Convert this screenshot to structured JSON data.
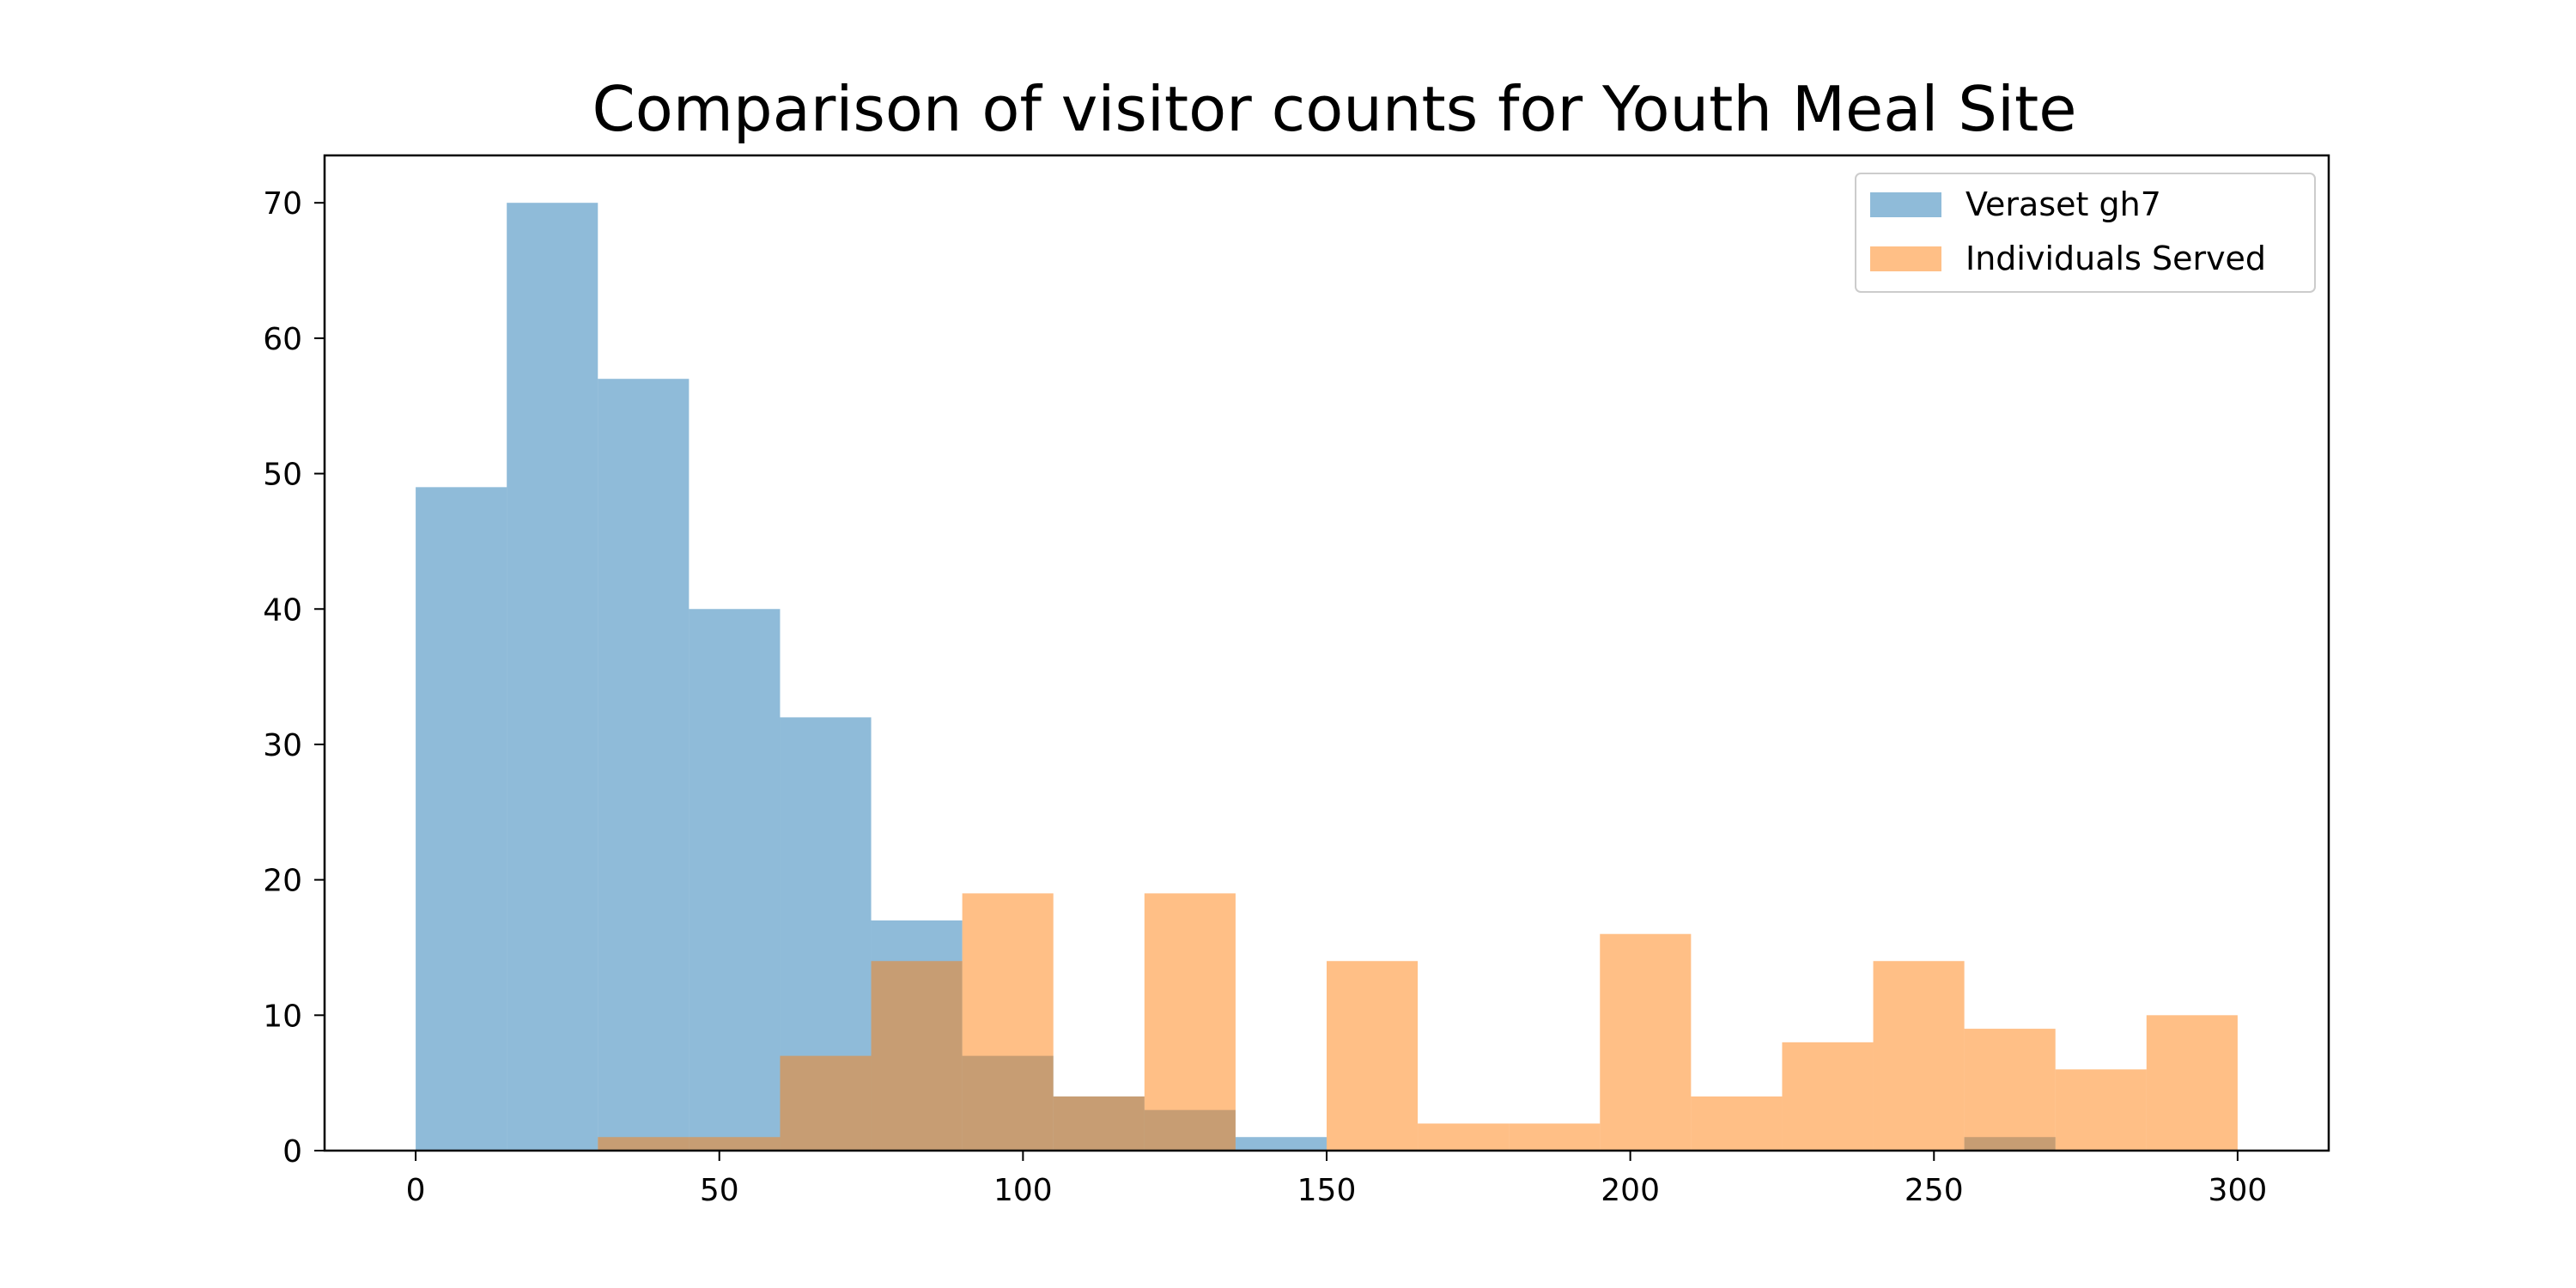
{
  "chart_data": {
    "type": "bar",
    "title": "Comparison of visitor counts for Youth Meal Site",
    "xlabel": "",
    "ylabel": "",
    "xlim": [
      -15,
      315
    ],
    "ylim": [
      0,
      73.5
    ],
    "xticks": [
      0,
      50,
      100,
      150,
      200,
      250,
      300
    ],
    "yticks": [
      0,
      10,
      20,
      30,
      40,
      50,
      60,
      70
    ],
    "bin_edges": [
      0,
      15,
      30,
      45,
      60,
      75,
      90,
      105,
      120,
      135,
      150,
      165,
      180,
      195,
      210,
      225,
      240,
      255,
      270,
      285,
      300
    ],
    "series": [
      {
        "name": "Veraset gh7",
        "color": "#1f77b4",
        "alpha": 0.5,
        "values": [
          49,
          70,
          57,
          40,
          32,
          17,
          7,
          4,
          3,
          1,
          0,
          0,
          0,
          0,
          0,
          0,
          0,
          1,
          0,
          0
        ]
      },
      {
        "name": "Individuals Served",
        "color": "#ff7f0e",
        "alpha": 0.5,
        "values": [
          0,
          0,
          1,
          1,
          7,
          14,
          19,
          4,
          19,
          0,
          14,
          2,
          2,
          16,
          4,
          8,
          14,
          9,
          6,
          10
        ]
      }
    ],
    "legend_position": "top-right",
    "grid": false
  }
}
